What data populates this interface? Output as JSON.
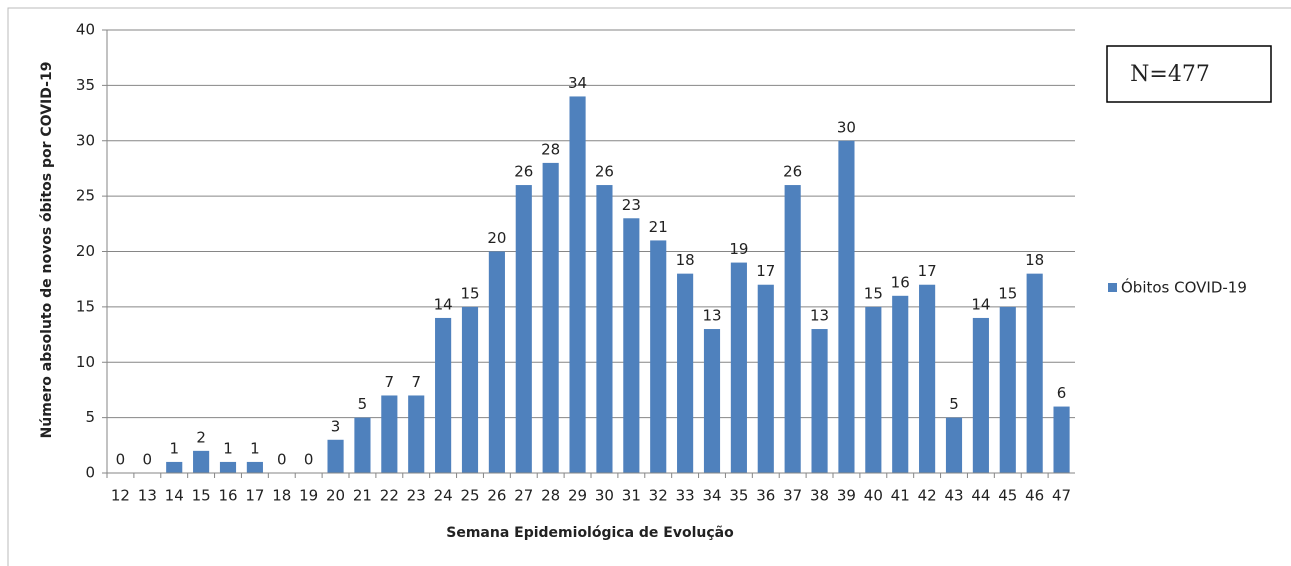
{
  "chart_data": {
    "type": "bar",
    "x_label": "Semana Epidemiológica de Evolução",
    "y_label": "Número absoluto de novos óbitos por COVID-19",
    "annotation": "N=477",
    "categories": [
      "12",
      "13",
      "14",
      "15",
      "16",
      "17",
      "18",
      "19",
      "20",
      "21",
      "22",
      "23",
      "24",
      "25",
      "26",
      "27",
      "28",
      "29",
      "30",
      "31",
      "32",
      "33",
      "34",
      "35",
      "36",
      "37",
      "38",
      "39",
      "40",
      "41",
      "42",
      "43",
      "44",
      "45",
      "46",
      "47"
    ],
    "series": [
      {
        "name": "Óbitos COVID-19",
        "color": "#4f81bd",
        "values": [
          0,
          0,
          1,
          2,
          1,
          1,
          0,
          0,
          3,
          5,
          7,
          7,
          14,
          15,
          20,
          26,
          28,
          34,
          26,
          23,
          21,
          18,
          13,
          19,
          17,
          26,
          13,
          30,
          15,
          16,
          17,
          5,
          14,
          15,
          18,
          6
        ]
      }
    ],
    "ylim": [
      0,
      40
    ],
    "yticks": [
      0,
      5,
      10,
      15,
      20,
      25,
      30,
      35,
      40
    ],
    "grid": true,
    "legend": "right"
  }
}
